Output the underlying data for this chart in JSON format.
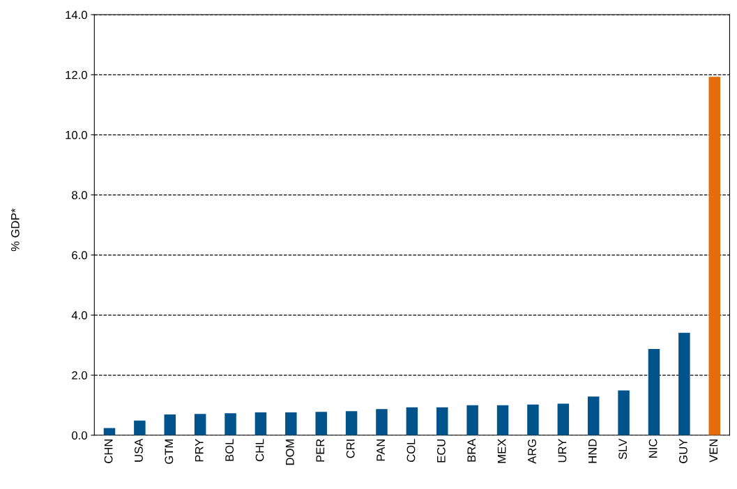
{
  "chart_data": {
    "type": "bar",
    "ylabel": "% GDP*",
    "categories": [
      "CHN",
      "USA",
      "GTM",
      "PRY",
      "BOL",
      "CHL",
      "DOM",
      "PER",
      "CRI",
      "PAN",
      "COL",
      "ECU",
      "BRA",
      "MEX",
      "ARG",
      "URY",
      "HND",
      "SLV",
      "NIC",
      "GUY",
      "VEN"
    ],
    "values": [
      0.24,
      0.49,
      0.69,
      0.71,
      0.73,
      0.76,
      0.76,
      0.78,
      0.8,
      0.87,
      0.93,
      0.93,
      1.0,
      1.0,
      1.02,
      1.05,
      1.29,
      1.49,
      2.87,
      3.41,
      11.93
    ],
    "colors": [
      "#00548b",
      "#00548b",
      "#00548b",
      "#00548b",
      "#00548b",
      "#00548b",
      "#00548b",
      "#00548b",
      "#00548b",
      "#00548b",
      "#00548b",
      "#00548b",
      "#00548b",
      "#00548b",
      "#00548b",
      "#00548b",
      "#00548b",
      "#00548b",
      "#00548b",
      "#00548b",
      "#e46c0a"
    ],
    "ylim": [
      0,
      14
    ],
    "yticks": [
      {
        "value": 0,
        "label": "0.0"
      },
      {
        "value": 2,
        "label": "2.0"
      },
      {
        "value": 4,
        "label": "4.0"
      },
      {
        "value": 6,
        "label": "6.0"
      },
      {
        "value": 8,
        "label": "8.0"
      },
      {
        "value": 10,
        "label": "10.0"
      },
      {
        "value": 12,
        "label": "12.0"
      },
      {
        "value": 14,
        "label": "14.0"
      }
    ],
    "grid": "y",
    "legend": false
  }
}
